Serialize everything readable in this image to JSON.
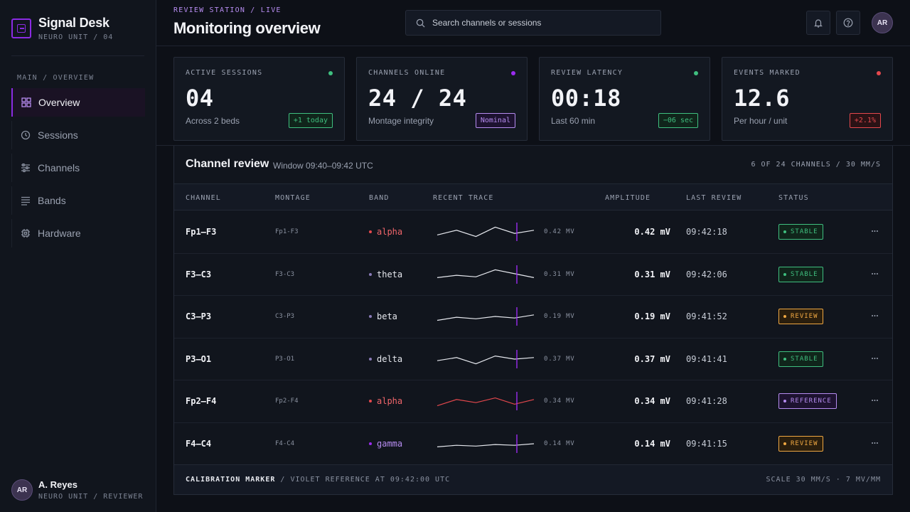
{
  "brand": {
    "name": "Signal Desk",
    "subtitle": "NEURO UNIT / 04"
  },
  "sidebar": {
    "section_label": "MAIN / OVERVIEW",
    "items": [
      {
        "label": "Overview",
        "icon": "grid-icon",
        "active": true
      },
      {
        "label": "Sessions",
        "icon": "clock-icon",
        "active": false
      },
      {
        "label": "Channels",
        "icon": "sliders-icon",
        "active": false
      },
      {
        "label": "Bands",
        "icon": "list-icon",
        "active": false
      },
      {
        "label": "Hardware",
        "icon": "chip-icon",
        "active": false
      }
    ],
    "user": {
      "initials": "AR",
      "name": "A. Reyes",
      "role": "NEURO UNIT / REVIEWER"
    }
  },
  "header": {
    "eyebrow": "REVIEW STATION / LIVE",
    "title": "Monitoring overview",
    "search_placeholder": "Search channels or sessions",
    "avatar_initials": "AR"
  },
  "stats": [
    {
      "label": "ACTIVE SESSIONS",
      "value": "04",
      "sub": "Across 2 beds",
      "badge": "+1 today",
      "dot_color": "#3fbf7f",
      "badge_color": "#3fbf7f",
      "badge_bg": "#10251b"
    },
    {
      "label": "CHANNELS ONLINE",
      "value": "24 / 24",
      "sub": "Montage integrity",
      "badge": "Nominal",
      "dot_color": "#9b2cf0",
      "badge_color": "#b68cf0",
      "badge_bg": "#1d1230"
    },
    {
      "label": "REVIEW LATENCY",
      "value": "00:18",
      "sub": "Last 60 min",
      "badge": "−06 sec",
      "dot_color": "#3fbf7f",
      "badge_color": "#3fbf7f",
      "badge_bg": "#10251b"
    },
    {
      "label": "EVENTS MARKED",
      "value": "12.6",
      "sub": "Per hour / unit",
      "badge": "+2.1%",
      "dot_color": "#e5484d",
      "badge_color": "#e5484d",
      "badge_bg": "#2a1215"
    }
  ],
  "panel": {
    "title": "Channel review",
    "window": "Window 09:40–09:42 UTC",
    "count": "6 OF 24 CHANNELS / 30 MM/S",
    "columns": {
      "channel": "CHANNEL",
      "montage": "MONTAGE",
      "band": "BAND",
      "trace": "RECENT TRACE",
      "amplitude": "AMPLITUDE",
      "last_review": "LAST REVIEW",
      "status": "STATUS"
    },
    "rows": [
      {
        "channel": "Fp1–F3",
        "montage": "Fp1-F3",
        "band": "alpha",
        "band_color": "#f0656a",
        "band_dot": "#e5484d",
        "trace": [
          0.7,
          0.4,
          0.8,
          0.2,
          0.6,
          0.4
        ],
        "trace_color": "#e6e8ee",
        "trace_value": "0.42 MV",
        "amplitude": "0.42 mV",
        "last_review": "09:42:18",
        "status": "STABLE",
        "status_color": "#3fbf7f",
        "status_bg": "#10251b"
      },
      {
        "channel": "F3–C3",
        "montage": "F3-C3",
        "band": "theta",
        "band_color": "#e6e8ee",
        "band_dot": "#8a7bb8",
        "trace": [
          0.7,
          0.55,
          0.65,
          0.2,
          0.45,
          0.7
        ],
        "trace_color": "#e6e8ee",
        "trace_value": "0.31 MV",
        "amplitude": "0.31 mV",
        "last_review": "09:42:06",
        "status": "STABLE",
        "status_color": "#3fbf7f",
        "status_bg": "#10251b"
      },
      {
        "channel": "C3–P3",
        "montage": "C3-P3",
        "band": "beta",
        "band_color": "#e6e8ee",
        "band_dot": "#8a7bb8",
        "trace": [
          0.75,
          0.55,
          0.65,
          0.5,
          0.6,
          0.4
        ],
        "trace_color": "#e6e8ee",
        "trace_value": "0.19 MV",
        "amplitude": "0.19 mV",
        "last_review": "09:41:52",
        "status": "REVIEW",
        "status_color": "#f0a842",
        "status_bg": "#2a1e0d"
      },
      {
        "channel": "P3–O1",
        "montage": "P3-O1",
        "band": "delta",
        "band_color": "#e6e8ee",
        "band_dot": "#8a7bb8",
        "trace": [
          0.6,
          0.4,
          0.8,
          0.3,
          0.5,
          0.4
        ],
        "trace_color": "#e6e8ee",
        "trace_value": "0.37 MV",
        "amplitude": "0.37 mV",
        "last_review": "09:41:41",
        "status": "STABLE",
        "status_color": "#3fbf7f",
        "status_bg": "#10251b"
      },
      {
        "channel": "Fp2–F4",
        "montage": "Fp2-F4",
        "band": "alpha",
        "band_color": "#f0656a",
        "band_dot": "#e5484d",
        "trace": [
          0.8,
          0.4,
          0.6,
          0.3,
          0.7,
          0.4
        ],
        "trace_color": "#e5484d",
        "trace_value": "0.34 MV",
        "amplitude": "0.34 mV",
        "last_review": "09:41:28",
        "status": "REFERENCE",
        "status_color": "#b68cf0",
        "status_bg": "#1d1230"
      },
      {
        "channel": "F4–C4",
        "montage": "F4-C4",
        "band": "gamma",
        "band_color": "#b68cf0",
        "band_dot": "#9b2cf0",
        "trace": [
          0.7,
          0.6,
          0.65,
          0.55,
          0.6,
          0.5
        ],
        "trace_color": "#e6e8ee",
        "trace_value": "0.14 MV",
        "amplitude": "0.14 mV",
        "last_review": "09:41:15",
        "status": "REVIEW",
        "status_color": "#f0a842",
        "status_bg": "#2a1e0d"
      }
    ],
    "footer_marker_label": "CALIBRATION MARKER",
    "footer_marker_text": "/ VIOLET REFERENCE AT 09:42:00 UTC",
    "footer_scale": "SCALE 30 MM/S · 7 MV/MM"
  },
  "colors": {
    "accent": "#8a2be2",
    "marker": "#9b2cf0"
  }
}
